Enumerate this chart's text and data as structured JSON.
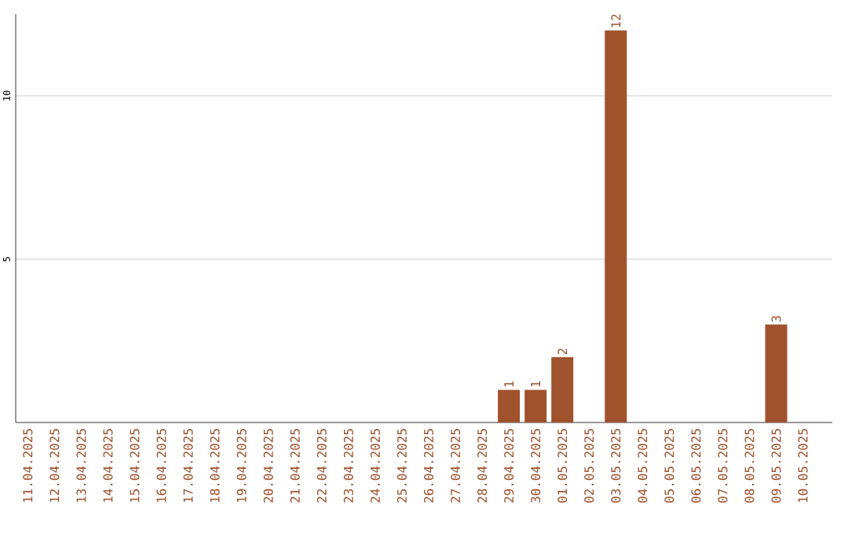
{
  "chart_data": {
    "type": "bar",
    "categories": [
      "11.04.2025",
      "12.04.2025",
      "13.04.2025",
      "14.04.2025",
      "15.04.2025",
      "16.04.2025",
      "17.04.2025",
      "18.04.2025",
      "19.04.2025",
      "20.04.2025",
      "21.04.2025",
      "22.04.2025",
      "23.04.2025",
      "24.04.2025",
      "25.04.2025",
      "26.04.2025",
      "27.04.2025",
      "28.04.2025",
      "29.04.2025",
      "30.04.2025",
      "01.05.2025",
      "02.05.2025",
      "03.05.2025",
      "04.05.2025",
      "05.05.2025",
      "06.05.2025",
      "07.05.2025",
      "08.05.2025",
      "09.05.2025",
      "10.05.2025"
    ],
    "values": [
      0,
      0,
      0,
      0,
      0,
      0,
      0,
      0,
      0,
      0,
      0,
      0,
      0,
      0,
      0,
      0,
      0,
      0,
      1,
      1,
      2,
      0,
      12,
      0,
      0,
      0,
      0,
      0,
      3,
      0
    ],
    "value_labels": [
      null,
      null,
      null,
      null,
      null,
      null,
      null,
      null,
      null,
      null,
      null,
      null,
      null,
      null,
      null,
      null,
      null,
      null,
      "1",
      "1",
      "2",
      null,
      "12",
      null,
      null,
      null,
      null,
      null,
      "3",
      null
    ],
    "color": "#a0522d",
    "ylim": [
      0,
      12.5
    ],
    "yticks": [
      5,
      10
    ],
    "grid": "y"
  }
}
